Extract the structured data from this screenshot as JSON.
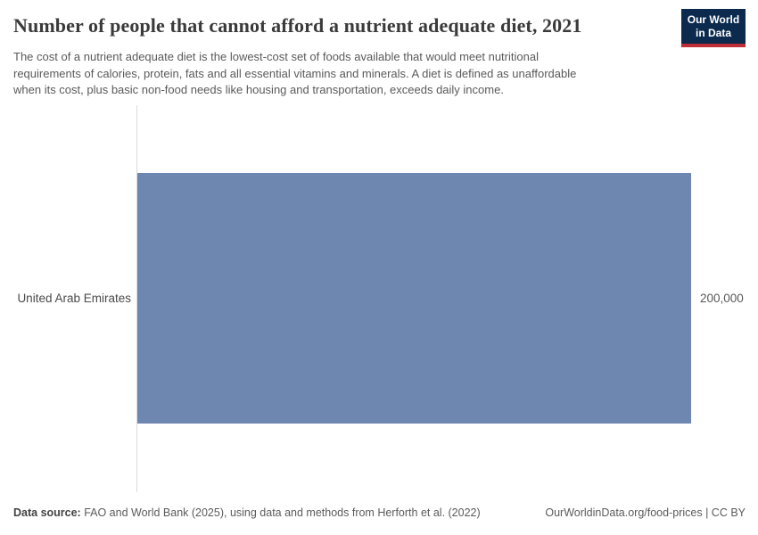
{
  "header": {
    "title": "Number of people that cannot afford a nutrient adequate diet, 2021",
    "subtitle_lines": [
      "The cost of a nutrient adequate diet is the lowest-cost set of foods available that would meet nutritional",
      "requirements of calories, protein, fats and all essential vitamins and minerals. A diet is defined as unaffordable",
      "when its cost, plus basic non-food needs like housing and transportation, exceeds daily income."
    ],
    "logo": {
      "line1": "Our World",
      "line2": "in Data",
      "bg_color": "#0b2a4e",
      "accent_color": "#bf2d36"
    }
  },
  "chart_data": {
    "type": "bar",
    "orientation": "horizontal",
    "title": "Number of people that cannot afford a nutrient adequate diet, 2021",
    "categories": [
      "United Arab Emirates"
    ],
    "values": [
      200000
    ],
    "value_labels": [
      "200,000"
    ],
    "xlim": [
      0,
      200000
    ],
    "bar_color": "#6e87b1",
    "grid": false,
    "legend": "none",
    "year": "2021"
  },
  "footer": {
    "source_label": "Data source:",
    "source_text": " FAO and World Bank (2025), using data and methods from Herforth et al. (2022)",
    "url": "OurWorldinData.org/food-prices",
    "separator": " | ",
    "license": "CC BY"
  }
}
